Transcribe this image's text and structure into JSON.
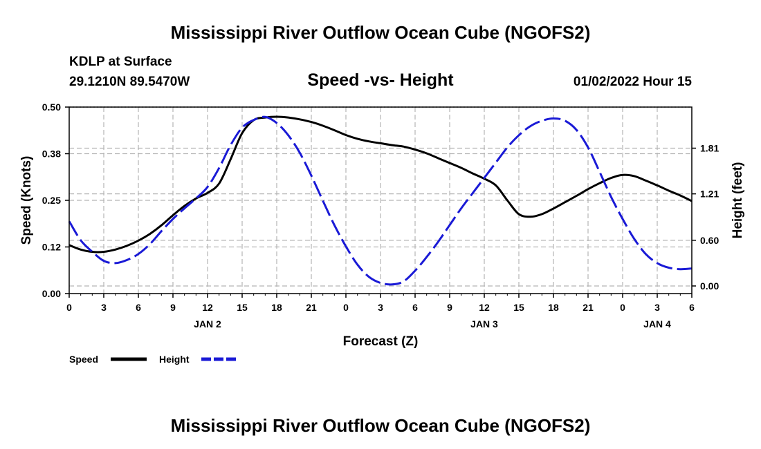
{
  "chart_data": {
    "type": "line",
    "title": "Mississippi River Outflow Ocean Cube (NGOFS2)",
    "footer_title": "Mississippi River Outflow Ocean Cube (NGOFS2)",
    "subtitle": "Speed -vs- Height",
    "station": "KDLP at Surface",
    "location": "29.1210N  89.5470W",
    "run_time": "01/02/2022 Hour 15",
    "xlabel": "Forecast (Z)",
    "ylabel_left": "Speed (Knots)",
    "ylabel_right": "Height (feet)",
    "x_range_hours": [
      0,
      54
    ],
    "x_tick_hours": [
      0,
      3,
      6,
      9,
      12,
      15,
      18,
      21,
      24,
      27,
      30,
      33,
      36,
      39,
      42,
      45,
      48,
      51,
      54
    ],
    "x_tick_labels": [
      "0",
      "3",
      "6",
      "9",
      "12",
      "15",
      "18",
      "21",
      "0",
      "3",
      "6",
      "9",
      "12",
      "15",
      "18",
      "21",
      "0",
      "3",
      "6"
    ],
    "day_labels": [
      {
        "hour": 12,
        "label": "JAN 2"
      },
      {
        "hour": 36,
        "label": "JAN 3"
      },
      {
        "hour": 51,
        "label": "JAN 4"
      }
    ],
    "y_left_range": [
      0,
      0.5
    ],
    "y_left_ticks": [
      0.0,
      0.125,
      0.25,
      0.375,
      0.5
    ],
    "y_left_tick_labels": [
      "0.00",
      "0.12",
      "0.25",
      "0.38",
      "0.50"
    ],
    "y_right_range": [
      -0.1,
      2.35
    ],
    "y_right_ticks": [
      0.0,
      0.6,
      1.21,
      1.81
    ],
    "y_right_tick_labels": [
      "0.00",
      "0.60",
      "1.21",
      "1.81"
    ],
    "grid": true,
    "legend": [
      {
        "name": "Speed",
        "color": "#000000",
        "style": "solid"
      },
      {
        "name": "Height",
        "color": "#1a1ad6",
        "style": "dashed"
      }
    ],
    "series": [
      {
        "name": "Speed",
        "axis": "left",
        "color": "#000000",
        "x": [
          0,
          1,
          2,
          3,
          4,
          5,
          6,
          7,
          8,
          9,
          10,
          11,
          12,
          13,
          14,
          15,
          16,
          17,
          18,
          19,
          20,
          21,
          22,
          23,
          24,
          25,
          26,
          27,
          28,
          29,
          30,
          31,
          32,
          33,
          34,
          35,
          36,
          37,
          38,
          39,
          40,
          41,
          42,
          43,
          44,
          45,
          46,
          47,
          48,
          49,
          50,
          51,
          52,
          53,
          54
        ],
        "values": [
          0.13,
          0.118,
          0.112,
          0.112,
          0.118,
          0.128,
          0.142,
          0.16,
          0.183,
          0.21,
          0.235,
          0.255,
          0.27,
          0.295,
          0.36,
          0.43,
          0.465,
          0.472,
          0.474,
          0.472,
          0.467,
          0.46,
          0.45,
          0.438,
          0.425,
          0.415,
          0.408,
          0.403,
          0.398,
          0.394,
          0.386,
          0.376,
          0.363,
          0.35,
          0.337,
          0.322,
          0.308,
          0.29,
          0.25,
          0.213,
          0.206,
          0.213,
          0.228,
          0.245,
          0.262,
          0.28,
          0.296,
          0.31,
          0.318,
          0.315,
          0.303,
          0.29,
          0.276,
          0.263,
          0.248
        ]
      },
      {
        "name": "Height",
        "axis": "right",
        "color": "#1a1ad6",
        "x": [
          0,
          1,
          2,
          3,
          4,
          5,
          6,
          7,
          8,
          9,
          10,
          11,
          12,
          13,
          14,
          15,
          16,
          17,
          18,
          19,
          20,
          21,
          22,
          23,
          24,
          25,
          26,
          27,
          28,
          29,
          30,
          31,
          32,
          33,
          34,
          35,
          36,
          37,
          38,
          39,
          40,
          41,
          42,
          43,
          44,
          45,
          46,
          47,
          48,
          49,
          50,
          51,
          52,
          53,
          54
        ],
        "values": [
          0.85,
          0.6,
          0.45,
          0.33,
          0.3,
          0.34,
          0.42,
          0.55,
          0.72,
          0.88,
          1.02,
          1.15,
          1.3,
          1.55,
          1.85,
          2.08,
          2.18,
          2.22,
          2.14,
          1.98,
          1.75,
          1.45,
          1.12,
          0.8,
          0.52,
          0.28,
          0.12,
          0.04,
          0.02,
          0.06,
          0.2,
          0.38,
          0.58,
          0.8,
          1.02,
          1.22,
          1.42,
          1.62,
          1.82,
          1.98,
          2.1,
          2.17,
          2.2,
          2.17,
          2.05,
          1.82,
          1.5,
          1.17,
          0.88,
          0.62,
          0.42,
          0.3,
          0.24,
          0.22,
          0.23
        ]
      }
    ]
  }
}
